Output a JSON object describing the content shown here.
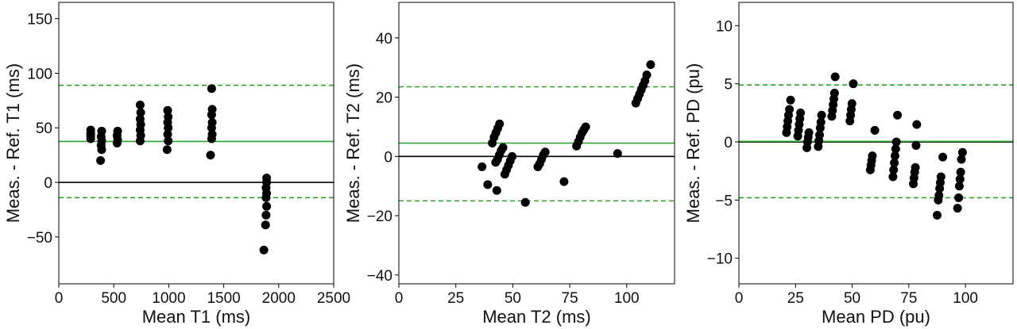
{
  "chart_data": [
    {
      "type": "scatter",
      "xlabel": "Mean T1 (ms)",
      "ylabel": "Meas. - Ref. T1 (ms)",
      "xlim": [
        0,
        2500
      ],
      "ylim": [
        -93,
        165
      ],
      "xticks": [
        0,
        500,
        1000,
        1500,
        2000,
        2500
      ],
      "yticks": [
        -50,
        0,
        50,
        100,
        150
      ],
      "xtick_labels": [
        "0",
        "500",
        "1000",
        "1500",
        "2000",
        "2500"
      ],
      "ytick_labels": [
        "−50",
        "0",
        "50",
        "100",
        "150"
      ],
      "reference_lines": [
        {
          "kind": "zero",
          "y": 0,
          "color": "#000000",
          "style": "solid"
        },
        {
          "kind": "mean",
          "y": 37.5,
          "color": "#2ca02c",
          "style": "solid"
        },
        {
          "kind": "upper-limit",
          "y": 89,
          "color": "#2ca02c",
          "style": "dashed"
        },
        {
          "kind": "lower-limit",
          "y": -14,
          "color": "#2ca02c",
          "style": "dashed"
        }
      ],
      "points": [
        [
          290,
          48
        ],
        [
          290,
          45
        ],
        [
          290,
          43
        ],
        [
          290,
          40
        ],
        [
          390,
          47
        ],
        [
          385,
          42
        ],
        [
          390,
          38
        ],
        [
          385,
          34
        ],
        [
          390,
          30
        ],
        [
          380,
          20
        ],
        [
          535,
          47
        ],
        [
          530,
          43
        ],
        [
          535,
          39
        ],
        [
          530,
          36
        ],
        [
          740,
          71
        ],
        [
          745,
          64
        ],
        [
          740,
          58
        ],
        [
          745,
          53
        ],
        [
          740,
          48
        ],
        [
          745,
          43
        ],
        [
          740,
          38
        ],
        [
          990,
          66
        ],
        [
          995,
          60
        ],
        [
          990,
          55
        ],
        [
          995,
          50
        ],
        [
          990,
          44
        ],
        [
          995,
          38
        ],
        [
          985,
          30
        ],
        [
          1390,
          86
        ],
        [
          1395,
          67
        ],
        [
          1390,
          62
        ],
        [
          1395,
          55
        ],
        [
          1390,
          50
        ],
        [
          1395,
          44
        ],
        [
          1390,
          40
        ],
        [
          1380,
          25
        ],
        [
          1890,
          4
        ],
        [
          1890,
          0
        ],
        [
          1885,
          -5
        ],
        [
          1890,
          -10
        ],
        [
          1885,
          -14
        ],
        [
          1890,
          -22
        ],
        [
          1885,
          -30
        ],
        [
          1880,
          -39
        ],
        [
          1865,
          -62
        ]
      ]
    },
    {
      "type": "scatter",
      "xlabel": "Mean T2 (ms)",
      "ylabel": "Meas. - Ref. T2 (ms)",
      "xlim": [
        0,
        121
      ],
      "ylim": [
        -43,
        52
      ],
      "xticks": [
        0,
        25,
        50,
        75,
        100
      ],
      "yticks": [
        -40,
        -20,
        0,
        20,
        40
      ],
      "xtick_labels": [
        "0",
        "25",
        "50",
        "75",
        "100"
      ],
      "ytick_labels": [
        "−40",
        "−20",
        "0",
        "20",
        "40"
      ],
      "reference_lines": [
        {
          "kind": "zero",
          "y": 0,
          "color": "#000000",
          "style": "solid"
        },
        {
          "kind": "mean",
          "y": 4.5,
          "color": "#2ca02c",
          "style": "solid"
        },
        {
          "kind": "upper-limit",
          "y": 23.5,
          "color": "#2ca02c",
          "style": "dashed"
        },
        {
          "kind": "lower-limit",
          "y": -15,
          "color": "#2ca02c",
          "style": "dashed"
        }
      ],
      "points": [
        [
          36.5,
          -3.5
        ],
        [
          39,
          -9.5
        ],
        [
          43,
          -11.5
        ],
        [
          55.5,
          -15.5
        ],
        [
          72.5,
          -8.5
        ],
        [
          96,
          1
        ],
        [
          41,
          4.5
        ],
        [
          41.8,
          6.5
        ],
        [
          42.6,
          8
        ],
        [
          43.4,
          9.5
        ],
        [
          44.2,
          11
        ],
        [
          42.5,
          -2
        ],
        [
          43.3,
          -1
        ],
        [
          44.1,
          0.5
        ],
        [
          44.9,
          2
        ],
        [
          45.7,
          3
        ],
        [
          46.5,
          -6
        ],
        [
          47.3,
          -4.5
        ],
        [
          48.1,
          -3
        ],
        [
          48.9,
          -1.5
        ],
        [
          49.7,
          0
        ],
        [
          61,
          -3.5
        ],
        [
          61.8,
          -2.5
        ],
        [
          62.6,
          -1
        ],
        [
          63.4,
          0.5
        ],
        [
          64.2,
          1.5
        ],
        [
          78,
          3.5
        ],
        [
          78.8,
          5
        ],
        [
          79.6,
          6.5
        ],
        [
          80.4,
          8
        ],
        [
          81.2,
          9
        ],
        [
          82,
          10
        ],
        [
          104,
          18
        ],
        [
          104.8,
          19.5
        ],
        [
          105.6,
          21
        ],
        [
          106.4,
          22.5
        ],
        [
          107.2,
          24
        ],
        [
          108,
          25.5
        ],
        [
          108.8,
          27.5
        ],
        [
          110.5,
          31
        ]
      ]
    },
    {
      "type": "scatter",
      "xlabel": "Mean PD (pu)",
      "ylabel": "Meas. - Ref. PD (pu)",
      "xlim": [
        0,
        121
      ],
      "ylim": [
        -12.2,
        12
      ],
      "xticks": [
        0,
        25,
        50,
        75,
        100
      ],
      "yticks": [
        -10,
        -5,
        0,
        5,
        10
      ],
      "xtick_labels": [
        "0",
        "25",
        "50",
        "75",
        "100"
      ],
      "ytick_labels": [
        "−10",
        "−5",
        "0",
        "5",
        "10"
      ],
      "reference_lines": [
        {
          "kind": "zero",
          "y": 0,
          "color": "#000000",
          "style": "solid"
        },
        {
          "kind": "mean",
          "y": 0.05,
          "color": "#2ca02c",
          "style": "solid"
        },
        {
          "kind": "upper-limit",
          "y": 4.9,
          "color": "#2ca02c",
          "style": "dashed"
        },
        {
          "kind": "lower-limit",
          "y": -4.8,
          "color": "#2ca02c",
          "style": "dashed"
        }
      ],
      "points": [
        [
          21,
          0.8
        ],
        [
          21.3,
          1.3
        ],
        [
          21.6,
          1.8
        ],
        [
          21.9,
          2.3
        ],
        [
          22.3,
          2.8
        ],
        [
          22.8,
          3.6
        ],
        [
          26,
          0.5
        ],
        [
          26.3,
          1
        ],
        [
          26.6,
          1.5
        ],
        [
          26.9,
          2
        ],
        [
          27.2,
          2.5
        ],
        [
          30,
          -0.5
        ],
        [
          30.3,
          0
        ],
        [
          30.6,
          0.4
        ],
        [
          30.9,
          0.8
        ],
        [
          35,
          -0.4
        ],
        [
          35.3,
          0.1
        ],
        [
          35.6,
          0.6
        ],
        [
          35.9,
          1.2
        ],
        [
          36.2,
          1.7
        ],
        [
          36.5,
          2.3
        ],
        [
          41,
          2.2
        ],
        [
          41.3,
          2.7
        ],
        [
          41.6,
          3.2
        ],
        [
          41.9,
          3.7
        ],
        [
          42.2,
          4.2
        ],
        [
          42.5,
          5.6
        ],
        [
          49,
          1.8
        ],
        [
          49.3,
          2.3
        ],
        [
          49.6,
          2.8
        ],
        [
          49.9,
          3.3
        ],
        [
          50.5,
          5
        ],
        [
          58,
          -2.4
        ],
        [
          58.3,
          -2
        ],
        [
          58.6,
          -1.6
        ],
        [
          58.9,
          -1.2
        ],
        [
          60,
          1
        ],
        [
          68,
          -3
        ],
        [
          68.3,
          -2.4
        ],
        [
          68.6,
          -1.8
        ],
        [
          68.9,
          -1.2
        ],
        [
          69.2,
          -0.6
        ],
        [
          69.5,
          0
        ],
        [
          70,
          2.3
        ],
        [
          77,
          -3.6
        ],
        [
          77.3,
          -3.1
        ],
        [
          77.6,
          -2.6
        ],
        [
          77.9,
          -2.2
        ],
        [
          78.2,
          -0.3
        ],
        [
          78.5,
          1.5
        ],
        [
          87.5,
          -6.3
        ],
        [
          88,
          -5
        ],
        [
          88.3,
          -4.6
        ],
        [
          88.6,
          -4
        ],
        [
          88.9,
          -3.5
        ],
        [
          89.2,
          -3
        ],
        [
          90,
          -1.3
        ],
        [
          96.5,
          -5.7
        ],
        [
          97,
          -4.8
        ],
        [
          97.3,
          -3.8
        ],
        [
          97.6,
          -3.2
        ],
        [
          97.9,
          -2.6
        ],
        [
          98.2,
          -1.5
        ],
        [
          98.7,
          -0.9
        ]
      ]
    }
  ]
}
